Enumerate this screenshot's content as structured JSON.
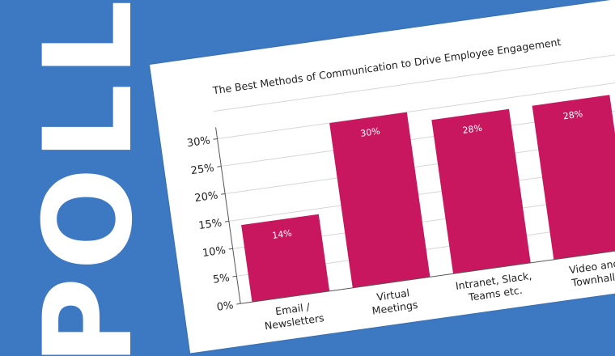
{
  "poll": {
    "label": "POLL"
  },
  "colors": {
    "background": "#3d79c2",
    "card": "#ffffff",
    "bar": "#c8175f",
    "grid": "#d6d6d6",
    "axis": "#555555"
  },
  "chart_data": {
    "type": "bar",
    "title": "The Best Methods of Communication to Drive Employee Engagement",
    "categories": [
      "Email / Newsletters",
      "Virtual Meetings",
      "Intranet, Slack, Teams etc.",
      "Video and Townhalls"
    ],
    "category_lines": [
      [
        "Email /",
        "Newsletters"
      ],
      [
        "Virtual",
        "Meetings"
      ],
      [
        "Intranet, Slack,",
        "Teams etc."
      ],
      [
        "Video and",
        "Townhalls"
      ]
    ],
    "values": [
      14,
      30,
      28,
      28
    ],
    "value_labels": [
      "14%",
      "30%",
      "28%",
      "28%"
    ],
    "y_ticks": [
      "0%",
      "5%",
      "10%",
      "15%",
      "20%",
      "25%",
      "30%"
    ],
    "y_tick_values": [
      0,
      5,
      10,
      15,
      20,
      25,
      30
    ],
    "ylim": [
      0,
      35
    ],
    "grid": true,
    "legend": "none"
  }
}
